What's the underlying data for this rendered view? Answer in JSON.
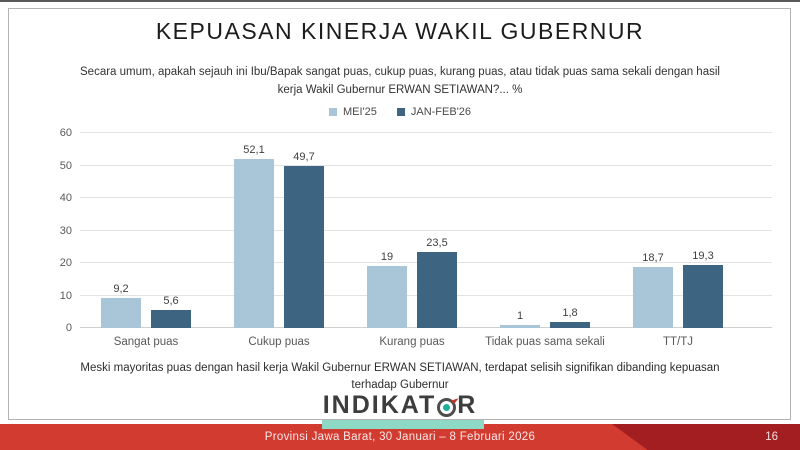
{
  "title": "KEPUASAN KINERJA WAKIL GUBERNUR",
  "subtitle": "Secara umum, apakah sejauh ini Ibu/Bapak sangat puas, cukup puas, kurang puas, atau tidak puas sama sekali dengan hasil kerja Wakil Gubernur ERWAN SETIAWAN?... %",
  "chart_data": {
    "type": "bar",
    "categories": [
      "Sangat puas",
      "Cukup puas",
      "Kurang puas",
      "Tidak puas sama sekali",
      "TT/TJ"
    ],
    "series": [
      {
        "name": "MEI'25",
        "color": "#a9c6d8",
        "values": [
          9.2,
          52.1,
          19,
          1,
          18.7
        ],
        "labels": [
          "9,2",
          "52,1",
          "19",
          "1",
          "18,7"
        ]
      },
      {
        "name": "JAN-FEB'26",
        "color": "#3d6480",
        "values": [
          5.6,
          49.7,
          23.5,
          1.8,
          19.3
        ],
        "labels": [
          "5,6",
          "49,7",
          "23,5",
          "1,8",
          "19,3"
        ]
      }
    ],
    "ylim": [
      0,
      60
    ],
    "yticks": [
      0,
      10,
      20,
      30,
      40,
      50,
      60
    ],
    "grid": true,
    "legend_position": "top",
    "xlabel": "",
    "ylabel": ""
  },
  "note": "Meski mayoritas puas dengan hasil kerja Wakil Gubernur ERWAN SETIAWAN, terdapat selisih signifikan dibanding kepuasan terhadap Gubernur",
  "logo": {
    "text_left": "INDIKAT",
    "text_right": "R",
    "teal_color": "#8ed9c6",
    "dot_color": "#1fae9b",
    "arrow_color": "#c0392b"
  },
  "footer": {
    "text": "Provinsi Jawa Barat, 30 Januari – 8 Februari 2026",
    "page": "16",
    "bar_color": "#d23b30",
    "dark_color": "#a31e20"
  }
}
